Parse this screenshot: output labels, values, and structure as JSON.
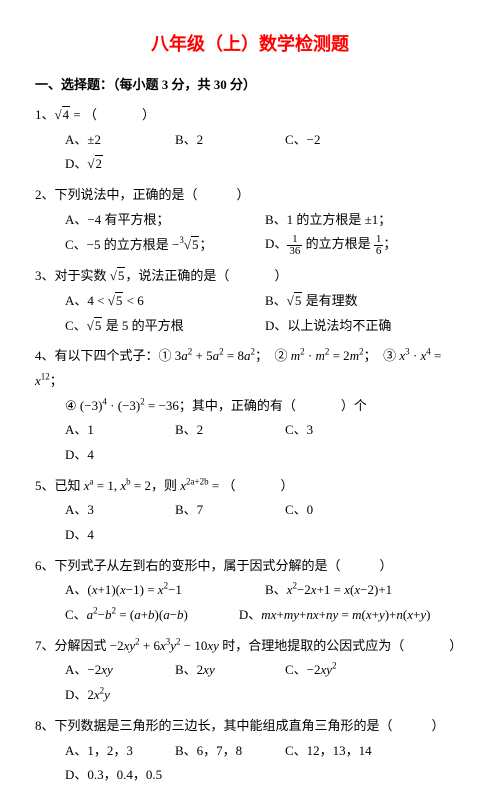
{
  "title": "八年级（上）数学检测题",
  "section": "一、选择题：（每小题 3 分，共 30 分）",
  "q1": {
    "stem_prefix": "1、",
    "expr": "√4 = （　　　）",
    "A": "A、±2",
    "B": "B、2",
    "C": "C、−2",
    "D": "D、√2"
  },
  "q2": {
    "stem": "2、下列说法中，正确的是（　　　）",
    "A": "A、−4 有平方根；",
    "B": "B、1 的立方根是 ±1；",
    "C": "C、−5 的立方根是 −∛5；",
    "D_prefix": "D、",
    "D_frac1_n": "1",
    "D_frac1_d": "36",
    "D_mid": " 的立方根是 ",
    "D_frac2_n": "1",
    "D_frac2_d": "6",
    "D_suffix": "；"
  },
  "q3": {
    "stem": "3、对于实数 √5，说法正确的是（　　　）",
    "A": "A、4 < √5 < 6",
    "B": "B、√5 是有理数",
    "C": "C、√5 是 5 的平方根",
    "D": "D、以上说法均不正确"
  },
  "q4": {
    "stem": "4、有以下四个式子：① 3a² + 5a² = 8a²； ② m² · m² = 2m²； ③ x³ · x⁴ = x¹²；",
    "line2": "④ (−3)⁴ · (−3)² = −36；其中，正确的有（　　　）个",
    "A": "A、1",
    "B": "B、2",
    "C": "C、3",
    "D": "D、4"
  },
  "q5": {
    "stem": "5、已知 xᵃ = 1, xᵇ = 2，则 x²ᵃ⁺²ᵇ = （　　　）",
    "A": "A、3",
    "B": "B、7",
    "C": "C、0",
    "D": "D、4"
  },
  "q6": {
    "stem": "6、下列式子从左到右的变形中，属于因式分解的是（　　　）",
    "A": "A、(x+1)(x−1) = x²−1",
    "B": "B、x²−2x+1 = x(x−2)+1",
    "C": "C、a²−b² = (a+b)(a−b)",
    "D": "D、mx+my+nx+ny = m(x+y)+n(x+y)"
  },
  "q7": {
    "stem": "7、分解因式 −2xy² + 6x³y² − 10xy 时，合理地提取的公因式应为（　　　）",
    "A": "A、−2xy",
    "B": "B、2xy",
    "C": "C、−2xy²",
    "D": "D、2x²y"
  },
  "q8": {
    "stem": "8、下列数据是三角形的三边长，其中能组成直角三角形的是（　　　）",
    "A": "A、1，2，3",
    "B": "B、6，7，8",
    "C": "C、12，13，14",
    "D": "D、0.3，0.4，0.5"
  },
  "style": {
    "title_color": "#ff0000",
    "title_fontsize": 18,
    "body_fontsize": 13,
    "background": "#ffffff",
    "text_color": "#000000"
  }
}
